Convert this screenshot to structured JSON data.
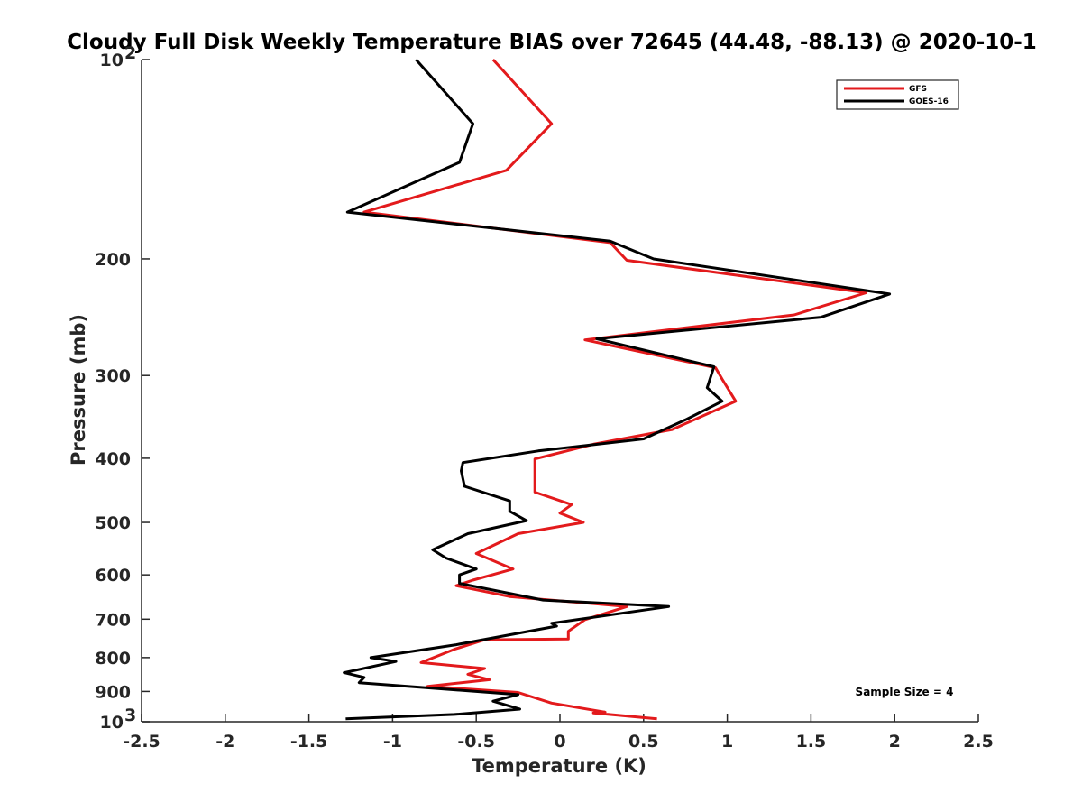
{
  "chart_data": {
    "type": "line",
    "title": "Cloudy Full Disk Weekly Temperature BIAS over 72645 (44.48, -88.13) @ 2020-10-1",
    "xlabel": "Temperature (K)",
    "ylabel": "Pressure (mb)",
    "xlim": [
      -2.5,
      2.5
    ],
    "ylim": [
      100,
      1000
    ],
    "y_scale": "log",
    "y_reversed": true,
    "x_ticks": [
      "-2.5",
      "-2",
      "-1.5",
      "-1",
      "-0.5",
      "0",
      "0.5",
      "1",
      "1.5",
      "2",
      "2.5"
    ],
    "y_tick_labels": [
      {
        "value": 100,
        "base": "10",
        "exp": "2"
      },
      {
        "value": 200,
        "text": "200"
      },
      {
        "value": 300,
        "text": "300"
      },
      {
        "value": 400,
        "text": "400"
      },
      {
        "value": 500,
        "text": "500"
      },
      {
        "value": 600,
        "text": "600"
      },
      {
        "value": 700,
        "text": "700"
      },
      {
        "value": 800,
        "text": "800"
      },
      {
        "value": 900,
        "text": "900"
      },
      {
        "value": 1000,
        "base": "10",
        "exp": "3"
      }
    ],
    "grid": false,
    "legend_position": "top-right",
    "series": [
      {
        "name": "GFS",
        "color": "#e31a1c",
        "points": [
          [
            -0.4,
            100
          ],
          [
            -0.05,
            125
          ],
          [
            -0.32,
            147
          ],
          [
            -1.17,
            170
          ],
          [
            0.3,
            189
          ],
          [
            0.4,
            201
          ],
          [
            1.83,
            225
          ],
          [
            1.4,
            243
          ],
          [
            0.15,
            265
          ],
          [
            0.93,
            292
          ],
          [
            0.97,
            304
          ],
          [
            1.05,
            328
          ],
          [
            0.67,
            362
          ],
          [
            0.2,
            381
          ],
          [
            -0.15,
            401
          ],
          [
            -0.15,
            450
          ],
          [
            0.07,
            470
          ],
          [
            0.0,
            484
          ],
          [
            0.14,
            500
          ],
          [
            -0.25,
            520
          ],
          [
            -0.5,
            557
          ],
          [
            -0.28,
            588
          ],
          [
            -0.52,
            611
          ],
          [
            -0.62,
            623
          ],
          [
            -0.3,
            647
          ],
          [
            0.4,
            670
          ],
          [
            0.15,
            701
          ],
          [
            0.05,
            730
          ],
          [
            0.05,
            750
          ],
          [
            -0.45,
            752
          ],
          [
            -0.63,
            777
          ],
          [
            -0.83,
            814
          ],
          [
            -0.45,
            831
          ],
          [
            -0.55,
            848
          ],
          [
            -0.42,
            864
          ],
          [
            -0.79,
            884
          ],
          [
            -0.25,
            903
          ],
          [
            -0.05,
            937
          ],
          [
            0.27,
            967
          ],
          [
            0.2,
            970
          ],
          [
            0.58,
            990
          ]
        ]
      },
      {
        "name": "GOES-16",
        "color": "#000000",
        "points": [
          [
            -0.86,
            100
          ],
          [
            -0.52,
            125
          ],
          [
            -0.6,
            143
          ],
          [
            -1.27,
            170
          ],
          [
            0.3,
            188
          ],
          [
            0.56,
            200
          ],
          [
            1.97,
            226
          ],
          [
            1.56,
            245
          ],
          [
            0.22,
            264
          ],
          [
            0.92,
            291
          ],
          [
            0.88,
            313
          ],
          [
            0.97,
            328
          ],
          [
            0.75,
            350
          ],
          [
            0.5,
            374
          ],
          [
            -0.13,
            390
          ],
          [
            -0.58,
            406
          ],
          [
            -0.59,
            418
          ],
          [
            -0.57,
            441
          ],
          [
            -0.3,
            464
          ],
          [
            -0.3,
            481
          ],
          [
            -0.2,
            497
          ],
          [
            -0.55,
            520
          ],
          [
            -0.76,
            550
          ],
          [
            -0.68,
            566
          ],
          [
            -0.5,
            588
          ],
          [
            -0.6,
            600
          ],
          [
            -0.6,
            618
          ],
          [
            -0.1,
            655
          ],
          [
            0.65,
            670
          ],
          [
            -0.05,
            710
          ],
          [
            -0.02,
            717
          ],
          [
            -0.62,
            765
          ],
          [
            -1.13,
            800
          ],
          [
            -0.98,
            811
          ],
          [
            -1.29,
            843
          ],
          [
            -1.17,
            857
          ],
          [
            -1.2,
            873
          ],
          [
            -0.25,
            910
          ],
          [
            -0.4,
            931
          ],
          [
            -0.24,
            957
          ],
          [
            -0.63,
            975
          ],
          [
            -1.28,
            990
          ]
        ]
      }
    ],
    "annotation": "Sample Size = 4"
  }
}
